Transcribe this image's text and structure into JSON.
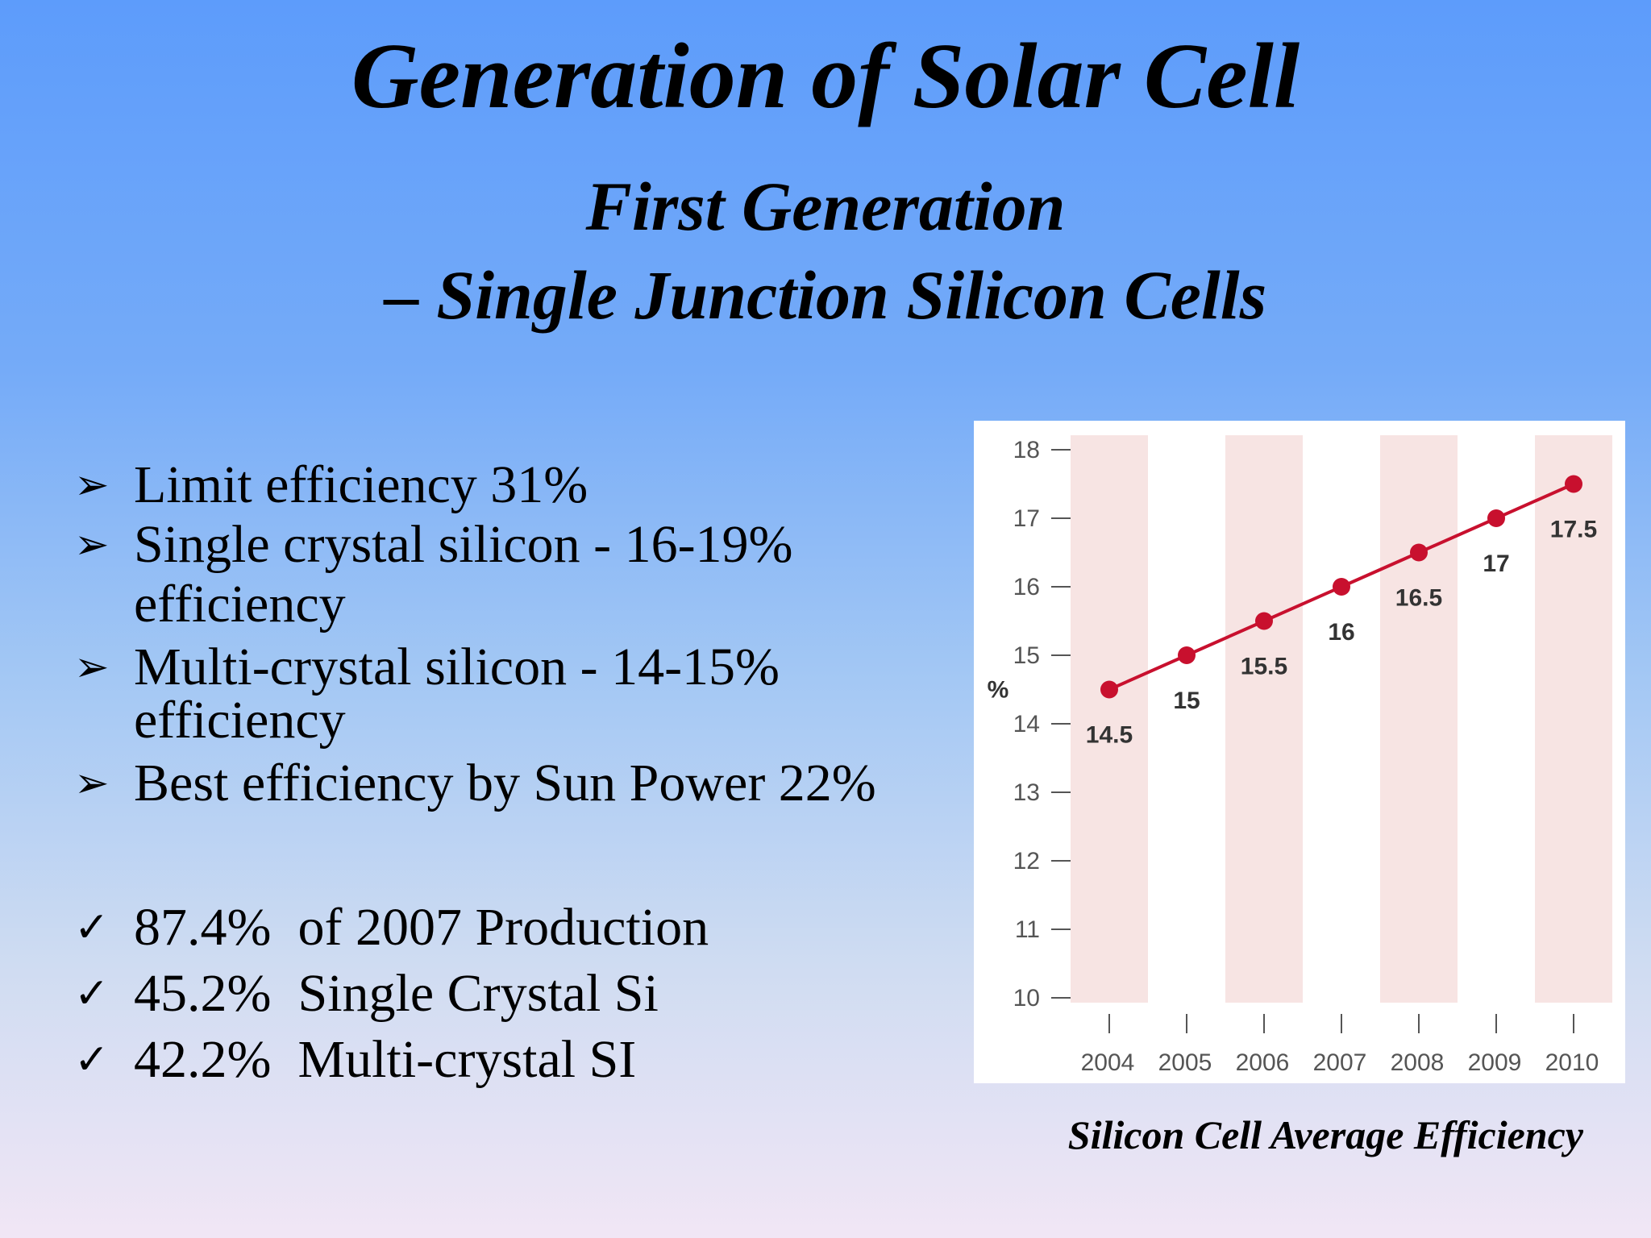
{
  "slide": {
    "title": "Generation of Solar Cell",
    "subtitle_line1": "First Generation",
    "subtitle_line2": "– Single Junction Silicon Cells",
    "caption": "Silicon Cell Average Efficiency"
  },
  "bullets": {
    "marker_icon": "arrowhead-bullet-icon",
    "items": [
      {
        "line1": "Limit efficiency 31%",
        "line2": ""
      },
      {
        "line1": "Single crystal silicon - 16-19%",
        "line2": "efficiency"
      },
      {
        "line1": "Multi-crystal silicon - 14-15%",
        "line2": "efficiency"
      },
      {
        "line1": "Best efficiency by Sun Power 22%",
        "line2": ""
      }
    ]
  },
  "checks": {
    "marker_icon": "checkmark-icon",
    "items": [
      {
        "value": "87.4%",
        "text": "of 2007 Production"
      },
      {
        "value": "45.2%",
        "text": "Single Crystal Si"
      },
      {
        "value": "42.2%",
        "text": "Multi-crystal SI"
      }
    ]
  },
  "chart_data": {
    "type": "line",
    "title": "",
    "xlabel": "",
    "ylabel": "%",
    "x": [
      "2004",
      "2005",
      "2006",
      "2007",
      "2008",
      "2009",
      "2010"
    ],
    "y_ticks": [
      "10",
      "11",
      "12",
      "13",
      "14",
      "15",
      "16",
      "17",
      "18"
    ],
    "ylim": [
      10,
      18
    ],
    "grid": false,
    "series": [
      {
        "values": [
          14.5,
          15,
          15.5,
          16,
          16.5,
          17,
          17.5
        ]
      }
    ],
    "data_labels": [
      "14.5",
      "15",
      "15.5",
      "16",
      "16.5",
      "17",
      "17.5"
    ],
    "colors": {
      "line": "#c8102e",
      "band": "#f7e4e3",
      "axis": "#555555",
      "label": "#333333"
    }
  }
}
